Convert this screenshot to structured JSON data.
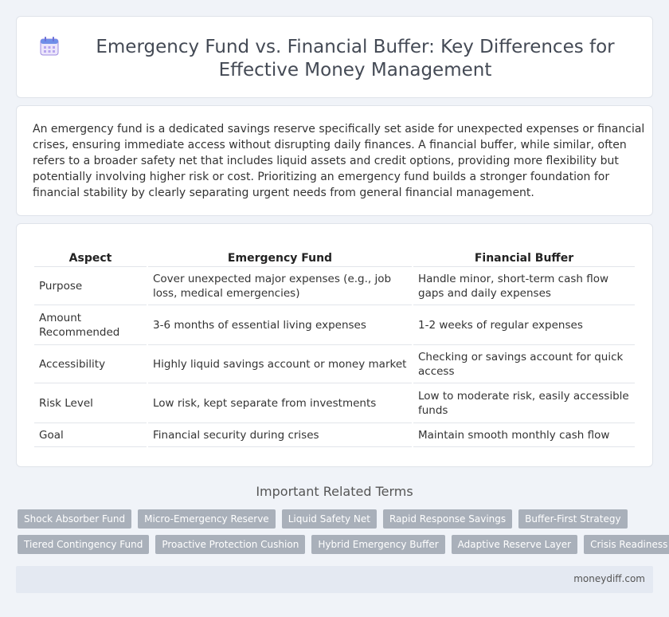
{
  "header": {
    "title": "Emergency Fund vs. Financial Buffer: Key Differences for Effective Money Management",
    "icon": "calendar-icon"
  },
  "intro": {
    "text": "An emergency fund is a dedicated savings reserve specifically set aside for unexpected expenses or financial crises, ensuring immediate access without disrupting daily finances. A financial buffer, while similar, often refers to a broader safety net that includes liquid assets and credit options, providing more flexibility but potentially involving higher risk or cost. Prioritizing an emergency fund builds a stronger foundation for financial stability by clearly separating urgent needs from general financial management."
  },
  "table": {
    "headers": [
      "Aspect",
      "Emergency Fund",
      "Financial Buffer"
    ],
    "rows": [
      [
        "Purpose",
        "Cover unexpected major expenses (e.g., job loss, medical emergencies)",
        "Handle minor, short-term cash flow gaps and daily expenses"
      ],
      [
        "Amount Recommended",
        "3-6 months of essential living expenses",
        "1-2 weeks of regular expenses"
      ],
      [
        "Accessibility",
        "Highly liquid savings account or money market",
        "Checking or savings account for quick access"
      ],
      [
        "Risk Level",
        "Low risk, kept separate from investments",
        "Low to moderate risk, easily accessible funds"
      ],
      [
        "Goal",
        "Financial security during crises",
        "Maintain smooth monthly cash flow"
      ]
    ]
  },
  "related": {
    "title": "Important Related Terms",
    "tags_row1": [
      "Shock Absorber Fund",
      "Micro-Emergency Reserve",
      "Liquid Safety Net",
      "Rapid Response Savings",
      "Buffer-First Strategy"
    ],
    "tags_row2": [
      "Tiered Contingency Fund",
      "Proactive Protection Cushion",
      "Hybrid Emergency Buffer",
      "Adaptive Reserve Layer",
      "Crisis Readiness Pod"
    ]
  },
  "footer": {
    "site": "moneydiff.com"
  },
  "colors": {
    "tag_bg": "#a9b0ba",
    "footer_bg": "#e4e9f2",
    "page_bg": "#f0f3f8"
  }
}
